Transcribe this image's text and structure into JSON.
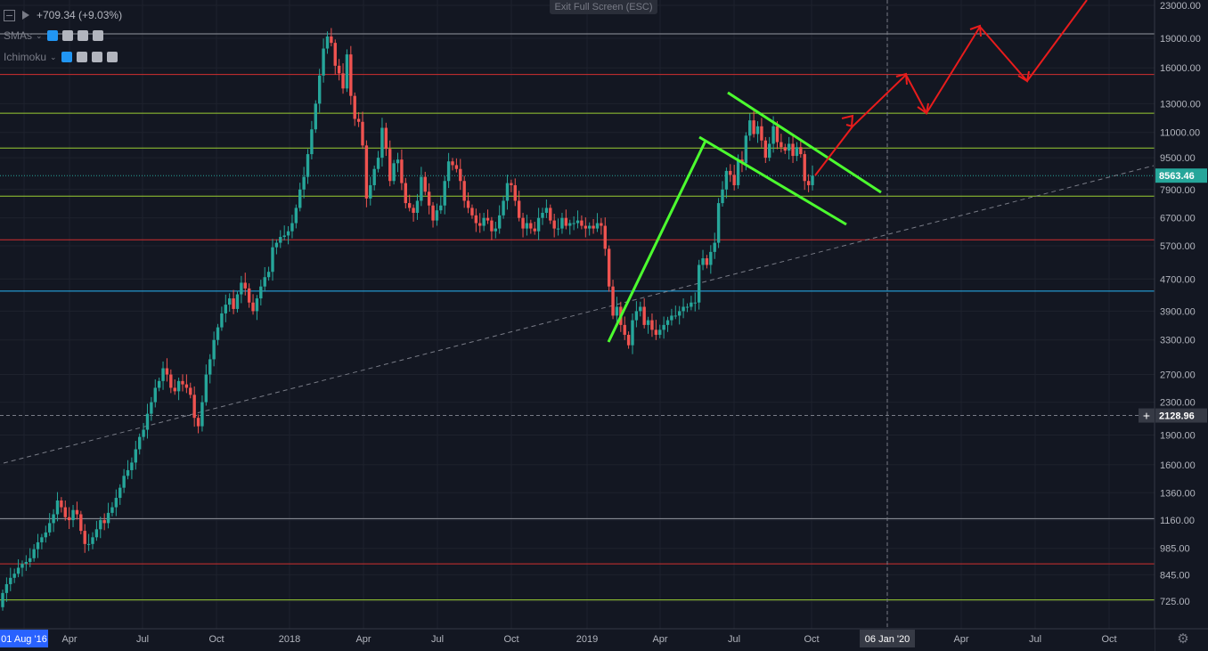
{
  "header": {
    "price_change": "+709.34 (+9.03%)",
    "indicators": [
      {
        "label": "SMAs"
      },
      {
        "label": "Ichimoku"
      }
    ],
    "exit_fullscreen": "Exit Full Screen (ESC)"
  },
  "colors": {
    "background": "#131722",
    "up": "#26a69a",
    "down": "#ef5350",
    "green_line": "#4cff2f",
    "red_arrow": "#e81c1c",
    "axis_text": "#b2b5be",
    "price_label_bg": "#363a45"
  },
  "chart_data": {
    "type": "candlestick",
    "y_scale": "log",
    "y_ticks": [
      "23000.00",
      "19000.00",
      "16000.00",
      "13000.00",
      "11000.00",
      "9500.00",
      "7900.00",
      "6700.00",
      "5700.00",
      "4700.00",
      "3900.00",
      "3300.00",
      "2700.00",
      "2300.00",
      "1900.00",
      "1600.00",
      "1360.00",
      "1160.00",
      "985.00",
      "845.00",
      "725.00"
    ],
    "x_ticks": [
      "01 Aug '16",
      "Apr",
      "Jul",
      "Oct",
      "2018",
      "Apr",
      "Jul",
      "Oct",
      "2019",
      "Apr",
      "Jul",
      "Oct",
      "06 Jan '20",
      "Apr",
      "Jul",
      "Oct"
    ],
    "price_labels": [
      "8563.46",
      "2128.96"
    ],
    "horizontal_levels": [
      {
        "price": 19500,
        "color": "#9598a1"
      },
      {
        "price": 15400,
        "color": "#d32f2f"
      },
      {
        "price": 12300,
        "color": "#9acd32"
      },
      {
        "price": 10050,
        "color": "#9acd32"
      },
      {
        "price": 8563,
        "color": "#26a69a",
        "style": "dotted"
      },
      {
        "price": 7600,
        "color": "#9acd32"
      },
      {
        "price": 5900,
        "color": "#d32f2f"
      },
      {
        "price": 4380,
        "color": "#29b6f6"
      },
      {
        "price": 2130,
        "color": "#787b86",
        "style": "dashed"
      },
      {
        "price": 1170,
        "color": "#9598a1"
      },
      {
        "price": 900,
        "color": "#d32f2f"
      },
      {
        "price": 730,
        "color": "#9acd32"
      }
    ],
    "weekly_closes": [
      760,
      800,
      830,
      850,
      880,
      900,
      910,
      930,
      980,
      1020,
      1050,
      1080,
      1140,
      1200,
      1300,
      1250,
      1180,
      1160,
      1230,
      1200,
      1090,
      1010,
      1010,
      1050,
      1100,
      1160,
      1140,
      1210,
      1250,
      1320,
      1400,
      1500,
      1550,
      1620,
      1750,
      1880,
      1960,
      2150,
      2300,
      2500,
      2600,
      2800,
      2700,
      2500,
      2450,
      2600,
      2550,
      2500,
      2400,
      2100,
      2000,
      2300,
      2700,
      2950,
      3300,
      3550,
      3850,
      4050,
      4200,
      3950,
      4300,
      4600,
      4450,
      4100,
      3900,
      4200,
      4500,
      4750,
      4900,
      5650,
      5800,
      6000,
      6050,
      6200,
      6500,
      7100,
      7900,
      8500,
      9700,
      11200,
      13000,
      15300,
      17900,
      19200,
      18500,
      16200,
      15500,
      14200,
      17300,
      13600,
      11900,
      11700,
      10200,
      7500,
      8100,
      8900,
      9500,
      11300,
      10000,
      8300,
      9200,
      9400,
      8200,
      7300,
      7100,
      6900,
      7400,
      8500,
      7800,
      7200,
      6600,
      7000,
      7200,
      8300,
      9300,
      9100,
      8900,
      8300,
      7400,
      7100,
      6800,
      6500,
      6400,
      6700,
      6600,
      6200,
      6300,
      6800,
      7400,
      8200,
      8100,
      7400,
      6700,
      6300,
      6500,
      6300,
      6200,
      6700,
      6900,
      7100,
      6600,
      6300,
      6300,
      6700,
      6400,
      6500,
      6500,
      6600,
      6400,
      6300,
      6400,
      6300,
      6500,
      6400,
      5600,
      4500,
      3800,
      4000,
      3600,
      3400,
      3200,
      3700,
      3900,
      4000,
      3600,
      3700,
      3500,
      3400,
      3500,
      3600,
      3700,
      3800,
      3800,
      3900,
      4000,
      4000,
      4100,
      4100,
      5100,
      5300,
      5100,
      5500,
      5800,
      7300,
      7900,
      8800,
      8600,
      8100,
      9400,
      9200,
      10800,
      11800,
      10900,
      11400,
      10500,
      9500,
      10300,
      11400,
      10400,
      10100,
      9900,
      10300,
      9600,
      10100,
      9700,
      8300,
      8100,
      8563
    ]
  }
}
